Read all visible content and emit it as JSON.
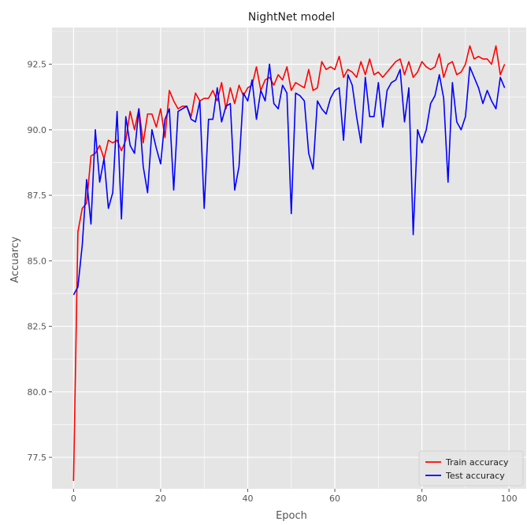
{
  "chart_data": {
    "type": "line",
    "title": "NightNet model",
    "xlabel": "Epoch",
    "ylabel": "Accuarcy",
    "xlim": [
      -4.95,
      103.95
    ],
    "ylim": [
      76.3,
      93.9
    ],
    "xticks": [
      0,
      20,
      40,
      60,
      80,
      100
    ],
    "yticks": [
      77.5,
      80.0,
      82.5,
      85.0,
      87.5,
      90.0,
      92.5
    ],
    "grid": true,
    "legend_position": "bottom-right",
    "series": [
      {
        "name": "Train accuracy",
        "color": "#ff0000",
        "x": [
          0,
          1,
          2,
          3,
          4,
          5,
          6,
          7,
          8,
          9,
          10,
          11,
          12,
          13,
          14,
          15,
          16,
          17,
          18,
          19,
          20,
          21,
          22,
          23,
          24,
          25,
          26,
          27,
          28,
          29,
          30,
          31,
          32,
          33,
          34,
          35,
          36,
          37,
          38,
          39,
          40,
          41,
          42,
          43,
          44,
          45,
          46,
          47,
          48,
          49,
          50,
          51,
          52,
          53,
          54,
          55,
          56,
          57,
          58,
          59,
          60,
          61,
          62,
          63,
          64,
          65,
          66,
          67,
          68,
          69,
          70,
          71,
          72,
          73,
          74,
          75,
          76,
          77,
          78,
          79,
          80,
          81,
          82,
          83,
          84,
          85,
          86,
          87,
          88,
          89,
          90,
          91,
          92,
          93,
          94,
          95,
          96,
          97,
          98,
          99
        ],
        "values": [
          76.6,
          86.1,
          87.0,
          87.2,
          89.0,
          89.1,
          89.4,
          88.9,
          89.6,
          89.5,
          89.6,
          89.2,
          89.6,
          90.7,
          90.0,
          90.8,
          89.5,
          90.6,
          90.6,
          90.1,
          90.8,
          89.7,
          91.5,
          91.1,
          90.8,
          90.9,
          90.9,
          90.5,
          91.4,
          91.1,
          91.2,
          91.2,
          91.5,
          91.1,
          91.8,
          90.8,
          91.6,
          91.0,
          91.7,
          91.3,
          91.6,
          91.7,
          92.4,
          91.5,
          91.9,
          92.0,
          91.7,
          92.1,
          91.9,
          92.4,
          91.5,
          91.8,
          91.7,
          91.6,
          92.3,
          91.5,
          91.6,
          92.6,
          92.3,
          92.4,
          92.3,
          92.8,
          92.0,
          92.3,
          92.2,
          92.0,
          92.6,
          92.1,
          92.7,
          92.1,
          92.2,
          92.0,
          92.2,
          92.4,
          92.6,
          92.7,
          92.1,
          92.6,
          92.0,
          92.2,
          92.6,
          92.4,
          92.3,
          92.4,
          92.9,
          92.0,
          92.5,
          92.6,
          92.1,
          92.2,
          92.5,
          93.2,
          92.7,
          92.8,
          92.7,
          92.7,
          92.5,
          93.2,
          92.1,
          92.5
        ]
      },
      {
        "name": "Test accuracy",
        "color": "#0000ff",
        "x": [
          0,
          1,
          2,
          3,
          4,
          5,
          6,
          7,
          8,
          9,
          10,
          11,
          12,
          13,
          14,
          15,
          16,
          17,
          18,
          19,
          20,
          21,
          22,
          23,
          24,
          25,
          26,
          27,
          28,
          29,
          30,
          31,
          32,
          33,
          34,
          35,
          36,
          37,
          38,
          39,
          40,
          41,
          42,
          43,
          44,
          45,
          46,
          47,
          48,
          49,
          50,
          51,
          52,
          53,
          54,
          55,
          56,
          57,
          58,
          59,
          60,
          61,
          62,
          63,
          64,
          65,
          66,
          67,
          68,
          69,
          70,
          71,
          72,
          73,
          74,
          75,
          76,
          77,
          78,
          79,
          80,
          81,
          82,
          83,
          84,
          85,
          86,
          87,
          88,
          89,
          90,
          91,
          92,
          93,
          94,
          95,
          96,
          97,
          98,
          99
        ],
        "values": [
          83.7,
          84.0,
          85.6,
          88.1,
          86.4,
          90.0,
          88.0,
          88.9,
          87.0,
          87.6,
          90.7,
          86.6,
          90.5,
          89.4,
          89.1,
          90.8,
          88.6,
          87.6,
          90.0,
          89.3,
          88.7,
          90.4,
          90.8,
          87.7,
          90.7,
          90.8,
          90.9,
          90.4,
          90.3,
          91.1,
          87.0,
          90.4,
          90.4,
          91.6,
          90.3,
          90.9,
          91.0,
          87.7,
          88.6,
          91.4,
          91.1,
          91.9,
          90.4,
          91.5,
          91.1,
          92.5,
          91.0,
          90.8,
          91.7,
          91.4,
          86.8,
          91.4,
          91.3,
          91.1,
          89.1,
          88.5,
          91.1,
          90.8,
          90.6,
          91.2,
          91.5,
          91.6,
          89.6,
          92.1,
          91.7,
          90.5,
          89.5,
          92.0,
          90.5,
          90.5,
          91.8,
          90.1,
          91.5,
          91.8,
          91.9,
          92.3,
          90.3,
          91.6,
          86.0,
          90.0,
          89.5,
          90.0,
          91.0,
          91.3,
          92.1,
          91.2,
          88.0,
          91.8,
          90.3,
          90.0,
          90.5,
          92.4,
          92.0,
          91.6,
          91.0,
          91.5,
          91.1,
          90.8,
          92.0,
          91.6
        ]
      }
    ]
  }
}
